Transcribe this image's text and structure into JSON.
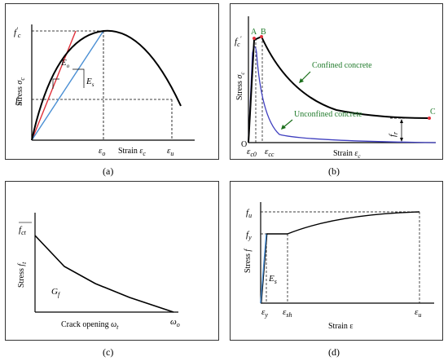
{
  "panels": {
    "a": {
      "caption": "(a)",
      "ylabel_prefix": "Stress",
      "ylabel_sym": "σ",
      "ylabel_sub": "c",
      "xlabel_prefix": "Strain",
      "xlabel_sym": "ε",
      "xlabel_sub": "c",
      "fc_sym": "f",
      "fc_sup": "c",
      "fc_prime": "′",
      "fu_sym": "f",
      "fu_sub": "u",
      "eo_sym": "ε",
      "eo_sub": "o",
      "eu_sym": "ε",
      "eu_sub": "u",
      "Eo_sym": "E",
      "Eo_sub": "o",
      "Es_sym": "E",
      "Es_sub": "s",
      "colors": {
        "curve": "#000000",
        "initial_tangent": "#e0303a",
        "secant": "#4a8fd4"
      }
    },
    "b": {
      "caption": "(b)",
      "ylabel_prefix": "Stress",
      "ylabel_sym": "σ",
      "ylabel_sub": "c",
      "xlabel_prefix": "Strain",
      "xlabel_sym": "ε",
      "xlabel_sub": "c",
      "fc_sym": "f",
      "fc_sub": "c",
      "fc_prime": "′",
      "point_A": "A",
      "point_B": "B",
      "point_C": "C",
      "origin": "O",
      "ec0_sym": "ε",
      "ec0_sub": "c0",
      "ecc_sym": "ε",
      "ecc_sub": "cc",
      "fr_sym": "f",
      "fr_sub": "r",
      "confined_label": "Confined concrete",
      "unconfined_label": "Unconfined concrete",
      "colors": {
        "confined": "#000000",
        "unconfined": "#3f3fbf",
        "points": "#e0303a",
        "labels": "#1f7a2a",
        "arrows": "#1a6e1a"
      }
    },
    "c": {
      "caption": "(c)",
      "ylabel_prefix": "Stress",
      "ylabel_sym": "f",
      "ylabel_sub": "t",
      "xlabel_prefix": "Crack opening",
      "xlabel_sym": "ω",
      "xlabel_sub": "t",
      "fct_sym": "f",
      "fct_sub": "ct",
      "Gf_sym": "G",
      "Gf_sub": "f",
      "wo_sym": "ω",
      "wo_sub": "o"
    },
    "d": {
      "caption": "(d)",
      "ylabel_prefix": "Stress",
      "ylabel_sym": "f",
      "xlabel": "Strain ε",
      "fu_sym": "f",
      "fu_sub": "u",
      "fy_sym": "f",
      "fy_sub": "y",
      "Es_sym": "E",
      "Es_sub": "s",
      "ey_sym": "ε",
      "ey_sub": "y",
      "esh_sym": "ε",
      "esh_sub": "sh",
      "eu_sym": "ε",
      "eu_sub": "u",
      "colors": {
        "curve": "#000000",
        "elastic": "#4a8fd4"
      }
    }
  }
}
